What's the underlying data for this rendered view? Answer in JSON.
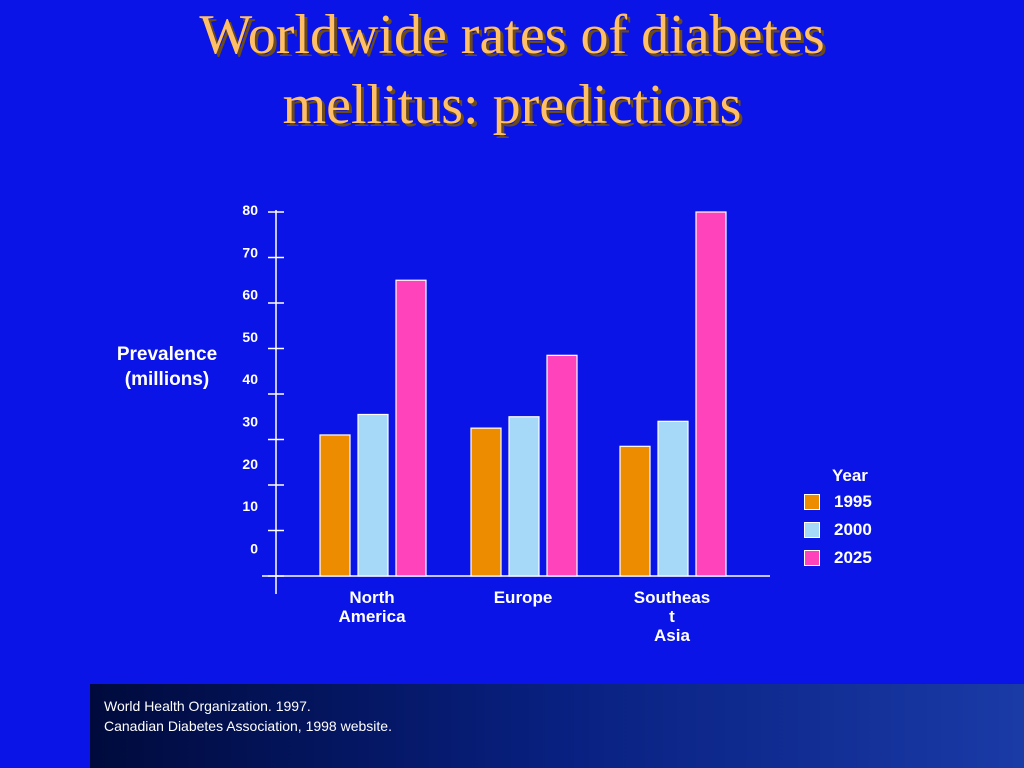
{
  "title_lines": [
    "Worldwide rates of diabetes",
    "mellitus: predictions"
  ],
  "ylabel_lines": [
    "Prevalence",
    "(millions)"
  ],
  "legend": {
    "title": "Year",
    "items": [
      {
        "label": "1995",
        "color": "#ee8c00"
      },
      {
        "label": "2000",
        "color": "#a6d8f7"
      },
      {
        "label": "2025",
        "color": "#ff44bb"
      }
    ]
  },
  "source_lines": [
    "World Health Organization. 1997.",
    "Canadian Diabetes Association, 1998 website."
  ],
  "chart_data": {
    "type": "bar",
    "title": "Worldwide rates of diabetes mellitus: predictions",
    "ylabel": "Prevalence (millions)",
    "xlabel": "",
    "ylim": [
      0,
      80
    ],
    "yticks": [
      0,
      10,
      20,
      30,
      40,
      50,
      60,
      70,
      80
    ],
    "categories": [
      {
        "lines": [
          "North",
          "America"
        ]
      },
      {
        "lines": [
          "Europe"
        ]
      },
      {
        "lines": [
          "Southeas",
          "t",
          "Asia"
        ]
      }
    ],
    "series": [
      {
        "name": "1995",
        "color": "#ee8c00",
        "values": [
          31,
          32.5,
          28.5
        ]
      },
      {
        "name": "2000",
        "color": "#a6d8f7",
        "values": [
          35.5,
          35,
          34
        ]
      },
      {
        "name": "2025",
        "color": "#ff44bb",
        "values": [
          65,
          48.5,
          80
        ]
      }
    ],
    "grid": false,
    "legend_position": "right"
  }
}
